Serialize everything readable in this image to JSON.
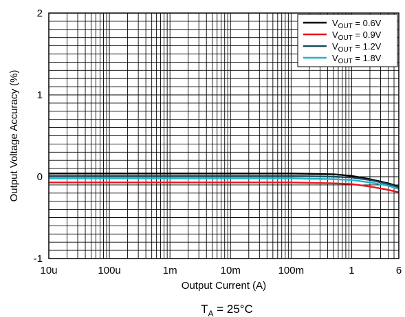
{
  "chart_data": {
    "type": "line",
    "xscale": "log",
    "xlim": [
      1e-05,
      6
    ],
    "ylim": [
      -1,
      2
    ],
    "xlabel": "Output Current (A)",
    "ylabel": "Output Voltage Accuracy (%)",
    "x_ticks": [
      {
        "value": 1e-05,
        "label": "10u"
      },
      {
        "value": 0.0001,
        "label": "100u"
      },
      {
        "value": 0.001,
        "label": "1m"
      },
      {
        "value": 0.01,
        "label": "10m"
      },
      {
        "value": 0.1,
        "label": "100m"
      },
      {
        "value": 1,
        "label": "1"
      },
      {
        "value": 6,
        "label": "6"
      }
    ],
    "y_ticks": [
      {
        "value": 2,
        "label": "2"
      },
      {
        "value": 1,
        "label": "1"
      },
      {
        "value": 0,
        "label": "0"
      },
      {
        "value": -1,
        "label": "-1"
      }
    ],
    "grid": true,
    "legend_position": "top-right",
    "caption": {
      "main": "T",
      "sub": "A",
      "rest": " = 25°C"
    },
    "series": [
      {
        "name": "V_OUT = 0.6V",
        "label_main": "V",
        "label_sub": "OUT",
        "label_rest": " = 0.6V",
        "color": "#000000",
        "x": [
          1e-05,
          0.001,
          0.1,
          0.5,
          1,
          2,
          4,
          6
        ],
        "y": [
          0.04,
          0.04,
          0.04,
          0.03,
          0.01,
          -0.03,
          -0.08,
          -0.12
        ]
      },
      {
        "name": "V_OUT = 0.9V",
        "label_main": "V",
        "label_sub": "OUT",
        "label_rest": " = 0.9V",
        "color": "#e8141b",
        "x": [
          1e-05,
          0.001,
          0.1,
          0.5,
          1,
          2,
          4,
          6
        ],
        "y": [
          -0.07,
          -0.07,
          -0.07,
          -0.08,
          -0.09,
          -0.12,
          -0.16,
          -0.19
        ]
      },
      {
        "name": "V_OUT = 1.2V",
        "label_main": "V",
        "label_sub": "OUT",
        "label_rest": " = 1.2V",
        "color": "#1b4a5c",
        "x": [
          1e-05,
          0.001,
          0.1,
          0.5,
          1,
          2,
          4,
          6
        ],
        "y": [
          0.01,
          0.01,
          0.01,
          0.0,
          -0.01,
          -0.04,
          -0.09,
          -0.13
        ]
      },
      {
        "name": "V_OUT = 1.8V",
        "label_main": "V",
        "label_sub": "OUT",
        "label_rest": " = 1.8V",
        "color": "#1fb5c9",
        "x": [
          1e-05,
          0.001,
          0.1,
          0.5,
          1,
          2,
          4,
          6
        ],
        "y": [
          -0.02,
          -0.02,
          -0.02,
          -0.03,
          -0.04,
          -0.07,
          -0.11,
          -0.15
        ]
      }
    ]
  }
}
